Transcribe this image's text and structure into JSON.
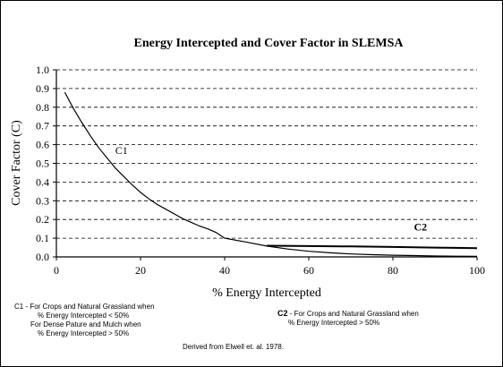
{
  "chart_data": {
    "type": "line",
    "title": "Energy Intercepted and Cover Factor in SLEMSA",
    "xlabel": "% Energy Intercepted",
    "ylabel": "Cover Factor (C)",
    "xlim": [
      0,
      100
    ],
    "ylim": [
      0,
      1.0
    ],
    "x_ticks": [
      "0",
      "20",
      "40",
      "60",
      "80",
      "100"
    ],
    "y_ticks": [
      "0.0",
      "0.1",
      "0.2",
      "0.3",
      "0.4",
      "0.5",
      "0.6",
      "0.7",
      "0.8",
      "0.9",
      "1.0"
    ],
    "grid": "horizontal dashed",
    "series": [
      {
        "name": "C1",
        "color": "#000000",
        "x": [
          2,
          4,
          6,
          8,
          10,
          12,
          14,
          16,
          18,
          20,
          22,
          24,
          26,
          28,
          30,
          32,
          34,
          36,
          38,
          40,
          45,
          50,
          55,
          60,
          65,
          70,
          75,
          80,
          85,
          90,
          95,
          100
        ],
        "y": [
          0.88,
          0.795,
          0.72,
          0.65,
          0.585,
          0.53,
          0.475,
          0.43,
          0.385,
          0.345,
          0.31,
          0.28,
          0.255,
          0.23,
          0.205,
          0.185,
          0.165,
          0.15,
          0.13,
          0.1,
          0.08,
          0.058,
          0.042,
          0.03,
          0.022,
          0.016,
          0.012,
          0.009,
          0.007,
          0.005,
          0.004,
          0.003
        ]
      },
      {
        "name": "C2",
        "color": "#000000",
        "x": [
          50,
          60,
          70,
          80,
          90,
          100
        ],
        "y": [
          0.06,
          0.058,
          0.056,
          0.053,
          0.05,
          0.047
        ]
      }
    ],
    "series_labels": [
      {
        "name": "C1",
        "x": 14,
        "y": 0.55
      },
      {
        "name": "C2",
        "x": 85,
        "y": 0.14
      }
    ]
  },
  "notes": {
    "c1_title": "C1 - For Crops and Natural Grassland when",
    "c1_line2": "% Energy Intercepted < 50%",
    "c1_line3": "For Dense Pature and Mulch when",
    "c1_line4": "% Energy Intercepted > 50%",
    "c2_bold": "C2",
    "c2_line1": " - For Crops and Natural Grassland when",
    "c2_line2": "% Energy Intercepted > 50%",
    "source": "Derived from Elwell et. al. 1978."
  }
}
